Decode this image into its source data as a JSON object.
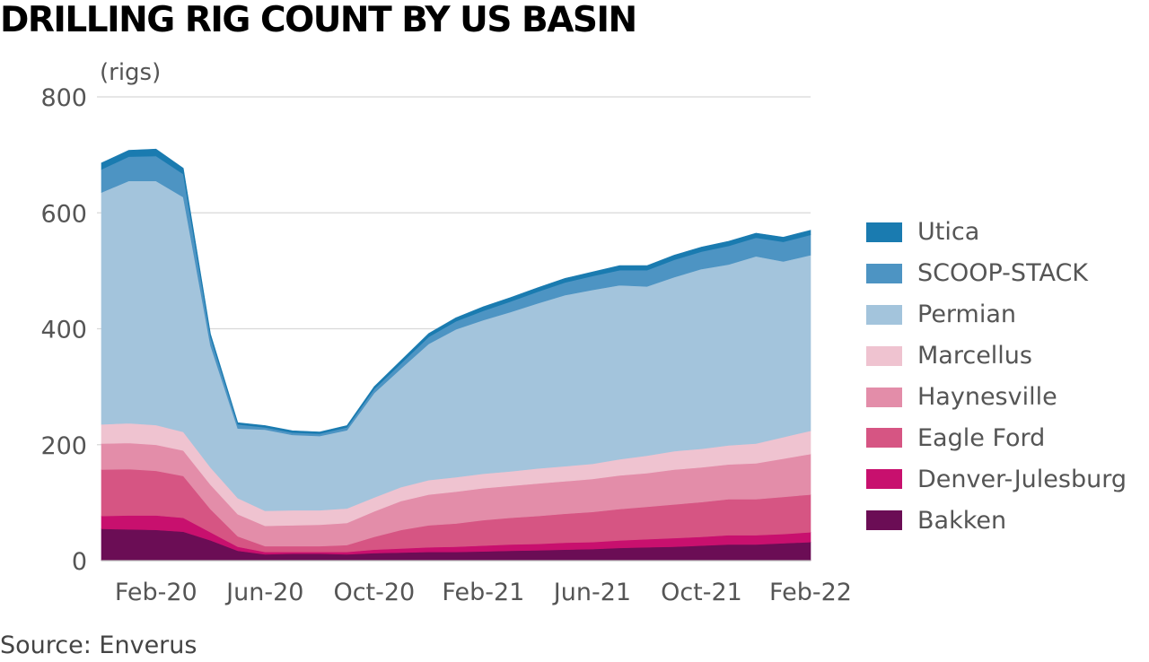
{
  "title": "DRILLING RIG COUNT BY US BASIN",
  "source": "Source: Enverus",
  "chart_data": {
    "type": "area",
    "stacked": true,
    "title": "DRILLING RIG COUNT BY US BASIN",
    "unit_label": "(rigs)",
    "ylim": [
      0,
      800
    ],
    "y_ticks": [
      0,
      200,
      400,
      600,
      800
    ],
    "x_tick_labels": [
      "Feb-20",
      "Jun-20",
      "Oct-20",
      "Feb-21",
      "Jun-21",
      "Oct-21",
      "Feb-22"
    ],
    "x": [
      "Dec-19",
      "Jan-20",
      "Feb-20",
      "Mar-20",
      "Apr-20",
      "May-20",
      "Jun-20",
      "Jul-20",
      "Aug-20",
      "Sep-20",
      "Oct-20",
      "Nov-20",
      "Dec-20",
      "Jan-21",
      "Feb-21",
      "Mar-21",
      "Apr-21",
      "May-21",
      "Jun-21",
      "Jul-21",
      "Aug-21",
      "Sep-21",
      "Oct-21",
      "Nov-21",
      "Dec-21",
      "Jan-22",
      "Feb-22"
    ],
    "series": [
      {
        "name": "Bakken",
        "color": "#6b0d55",
        "values": [
          55,
          54,
          53,
          50,
          35,
          17,
          11,
          12,
          12,
          11,
          13,
          14,
          15,
          15,
          16,
          17,
          18,
          19,
          20,
          22,
          23,
          24,
          26,
          28,
          28,
          30,
          32
        ]
      },
      {
        "name": "Denver-Julesburg",
        "color": "#c8106e",
        "values": [
          22,
          24,
          25,
          24,
          14,
          7,
          4,
          3,
          3,
          4,
          6,
          7,
          8,
          9,
          10,
          11,
          11,
          12,
          12,
          13,
          14,
          15,
          15,
          16,
          16,
          16,
          17
        ]
      },
      {
        "name": "Eagle Ford",
        "color": "#d65583",
        "values": [
          80,
          80,
          77,
          72,
          40,
          18,
          10,
          10,
          10,
          12,
          22,
          32,
          38,
          40,
          44,
          46,
          48,
          50,
          52,
          54,
          56,
          58,
          60,
          62,
          62,
          64,
          65
        ]
      },
      {
        "name": "Haynesville",
        "color": "#e38da9",
        "values": [
          45,
          45,
          45,
          44,
          42,
          38,
          35,
          36,
          37,
          38,
          44,
          50,
          53,
          55,
          55,
          55,
          56,
          56,
          57,
          58,
          58,
          60,
          60,
          60,
          62,
          66,
          70
        ]
      },
      {
        "name": "Marcellus",
        "color": "#efc3d0",
        "values": [
          33,
          34,
          34,
          32,
          30,
          28,
          26,
          26,
          25,
          25,
          24,
          24,
          25,
          25,
          25,
          25,
          26,
          26,
          26,
          28,
          30,
          32,
          32,
          33,
          34,
          37,
          40
        ]
      },
      {
        "name": "Permian",
        "color": "#a3c4dc",
        "values": [
          400,
          418,
          421,
          405,
          210,
          120,
          140,
          130,
          128,
          135,
          180,
          205,
          235,
          255,
          265,
          275,
          285,
          295,
          300,
          300,
          292,
          300,
          310,
          312,
          323,
          303,
          303
        ]
      },
      {
        "name": "SCOOP-STACK",
        "color": "#4d94c3",
        "values": [
          40,
          42,
          43,
          40,
          15,
          7,
          4,
          4,
          4,
          5,
          7,
          9,
          12,
          14,
          16,
          18,
          20,
          22,
          24,
          26,
          28,
          30,
          30,
          32,
          32,
          34,
          35
        ]
      },
      {
        "name": "Utica",
        "color": "#1a7bb0",
        "values": [
          11,
          11,
          12,
          10,
          5,
          3,
          3,
          3,
          3,
          3,
          4,
          5,
          6,
          6,
          7,
          7,
          7,
          7,
          7,
          8,
          8,
          8,
          8,
          8,
          8,
          8,
          8
        ]
      }
    ]
  }
}
